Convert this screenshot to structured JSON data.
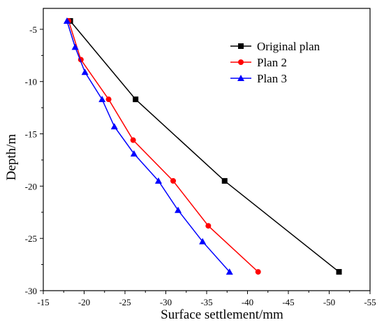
{
  "chart_data": {
    "type": "line",
    "title": "",
    "xlabel": "Surface settlement/mm",
    "ylabel": "Depth/m",
    "xlim": [
      -15,
      -55
    ],
    "ylim": [
      -30,
      -3
    ],
    "x_ticks": [
      -15,
      -20,
      -25,
      -30,
      -35,
      -40,
      -45,
      -50,
      -55
    ],
    "y_ticks": [
      -5,
      -10,
      -15,
      -20,
      -25,
      -30
    ],
    "grid": false,
    "legend_position": "top-right",
    "series": [
      {
        "name": "Original plan",
        "color": "#000000",
        "marker": "square",
        "x": [
          -18.3,
          -26.3,
          -37.2,
          -51.2
        ],
        "y": [
          -4.2,
          -11.7,
          -19.5,
          -28.2
        ]
      },
      {
        "name": "Plan 2",
        "color": "#ff0000",
        "marker": "circle",
        "x": [
          -18.1,
          -19.6,
          -23.0,
          -26.0,
          -30.9,
          -35.2,
          -41.3
        ],
        "y": [
          -4.2,
          -7.9,
          -11.7,
          -15.6,
          -19.5,
          -23.8,
          -28.2
        ]
      },
      {
        "name": "Plan 3",
        "color": "#0000ff",
        "marker": "triangle",
        "x": [
          -17.9,
          -18.9,
          -20.1,
          -22.2,
          -23.7,
          -26.1,
          -29.1,
          -31.5,
          -34.5,
          -37.8
        ],
        "y": [
          -4.2,
          -6.7,
          -9.1,
          -11.7,
          -14.3,
          -16.9,
          -19.5,
          -22.3,
          -25.3,
          -28.2
        ]
      }
    ]
  }
}
